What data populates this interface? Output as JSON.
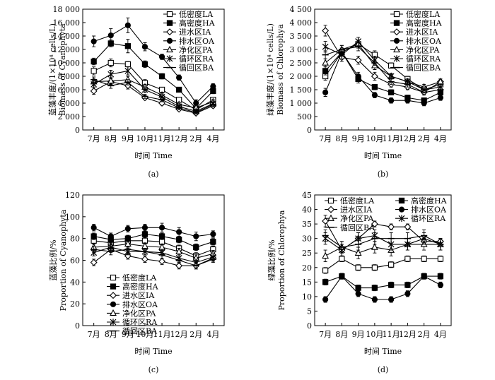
{
  "figure": {
    "x_categories": [
      "7月",
      "8月",
      "9月",
      "10月",
      "11月",
      "12月",
      "2月",
      "4月"
    ],
    "xlabel": "时间 Time",
    "panels": [
      {
        "id": "a",
        "label": "(a)",
        "ylabel_cn": "蓝藻丰度/(1×10⁴ cells/L)",
        "ylabel_en": "Biomass of Cyanophyta",
        "ylim": [
          0,
          18000
        ],
        "yticks": [
          "0",
          "2 000",
          "4 000",
          "6 000",
          "8 000",
          "10 000",
          "12 000",
          "14 000",
          "16 000",
          "18 000"
        ],
        "legend_position": "top-right",
        "legend_columns": 1
      },
      {
        "id": "b",
        "label": "(b)",
        "ylabel_cn": "绿藻丰度/(1×10⁴ cells/L)",
        "ylabel_en": "Biomass of Chlorophya",
        "ylim": [
          0,
          4500
        ],
        "yticks": [
          "0",
          "500",
          "1 000",
          "1 500",
          "2 000",
          "2 500",
          "3 000",
          "3 500",
          "4 000",
          "4 500"
        ],
        "legend_position": "top-right",
        "legend_columns": 1
      },
      {
        "id": "c",
        "label": "(c)",
        "ylabel_cn": "蓝藻比例/%",
        "ylabel_en": "Proportion of Cyanophyta",
        "ylim": [
          0,
          120
        ],
        "yticks": [
          "0",
          "20",
          "40",
          "60",
          "80",
          "100",
          "120"
        ],
        "legend_position": "bottom-left",
        "legend_columns": 1
      },
      {
        "id": "d",
        "label": "(d)",
        "ylabel_cn": "绿藻比例/%",
        "ylabel_en": "Proportion of Chlorophya",
        "ylim": [
          0,
          45
        ],
        "yticks": [
          "0",
          "5",
          "10",
          "15",
          "20",
          "25",
          "30",
          "35",
          "40",
          "45"
        ],
        "legend_position": "top",
        "legend_columns": 2
      }
    ]
  },
  "series_styles": [
    {
      "key": "LA",
      "name": "低密度LA",
      "marker": "open-square"
    },
    {
      "key": "HA",
      "name": "高密度HA",
      "marker": "filled-square"
    },
    {
      "key": "IA",
      "name": "进水区IA",
      "marker": "open-diamond"
    },
    {
      "key": "OA",
      "name": "排水区OA",
      "marker": "filled-circle"
    },
    {
      "key": "PA",
      "name": "净化区PA",
      "marker": "open-triangle"
    },
    {
      "key": "RA",
      "name": "循环区RA",
      "marker": "star"
    },
    {
      "key": "BA",
      "name": "循回区BA",
      "marker": "dash"
    }
  ],
  "chart_data": [
    {
      "type": "line",
      "title": "(a)",
      "xlabel": "时间 Time",
      "ylabel": "蓝藻丰度/(1×10⁴ cells/L) Biomass of Cyanophyta",
      "categories": [
        "7月",
        "8月",
        "9月",
        "10月",
        "11月",
        "12月",
        "2月",
        "4月"
      ],
      "ylim": [
        0,
        18000
      ],
      "series": [
        {
          "name": "低密度LA",
          "values": [
            8800,
            10000,
            9800,
            7000,
            6000,
            4500,
            3000,
            4500
          ],
          "errors": [
            600,
            600,
            400,
            500,
            300,
            300,
            300,
            300
          ]
        },
        {
          "name": "高密度HA",
          "values": [
            10200,
            12900,
            12500,
            9800,
            8000,
            6000,
            3200,
            5800
          ],
          "errors": [
            500,
            500,
            1000,
            500,
            400,
            300,
            300,
            400
          ]
        },
        {
          "name": "进水区IA",
          "values": [
            5800,
            7200,
            6600,
            4800,
            4000,
            3100,
            2500,
            3600
          ],
          "errors": [
            500,
            500,
            500,
            300,
            300,
            200,
            200,
            300
          ]
        },
        {
          "name": "排水区OA",
          "values": [
            13200,
            14100,
            15600,
            12400,
            10900,
            7800,
            4000,
            6500
          ],
          "errors": [
            800,
            1000,
            1100,
            600,
            400,
            400,
            500,
            400
          ]
        },
        {
          "name": "净化区PA",
          "values": [
            7200,
            7300,
            7500,
            6400,
            5200,
            3800,
            3300,
            4200
          ],
          "errors": [
            500,
            500,
            500,
            400,
            300,
            300,
            300,
            300
          ]
        },
        {
          "name": "循环区RA",
          "values": [
            6800,
            8300,
            8800,
            6000,
            4900,
            3500,
            2800,
            3900
          ],
          "errors": [
            500,
            600,
            600,
            400,
            300,
            300,
            300,
            300
          ]
        },
        {
          "name": "循回区BA",
          "values": [
            7500,
            6600,
            7100,
            5000,
            4500,
            3300,
            2600,
            3800
          ],
          "errors": [
            400,
            400,
            400,
            300,
            300,
            300,
            200,
            300
          ]
        }
      ],
      "legend": "top-right"
    },
    {
      "type": "line",
      "title": "(b)",
      "xlabel": "时间 Time",
      "ylabel": "绿藻丰度/(1×10⁴ cells/L) Biomass of Chlorophya",
      "categories": [
        "7月",
        "8月",
        "9月",
        "10月",
        "11月",
        "12月",
        "2月",
        "4月"
      ],
      "ylim": [
        0,
        4500
      ],
      "series": [
        {
          "name": "低密度LA",
          "values": [
            2000,
            2900,
            3200,
            2800,
            2400,
            1900,
            1500,
            1700
          ],
          "errors": [
            150,
            150,
            150,
            150,
            100,
            100,
            100,
            100
          ]
        },
        {
          "name": "高密度HA",
          "values": [
            2200,
            2900,
            1900,
            1600,
            1400,
            1200,
            1100,
            1400
          ],
          "errors": [
            150,
            150,
            150,
            100,
            100,
            100,
            100,
            100
          ]
        },
        {
          "name": "进水区IA",
          "values": [
            3700,
            2700,
            2600,
            2000,
            1700,
            1600,
            1400,
            1800
          ],
          "errors": [
            200,
            150,
            150,
            150,
            100,
            100,
            100,
            100
          ]
        },
        {
          "name": "排水区OA",
          "values": [
            1400,
            2900,
            2000,
            1300,
            1100,
            1100,
            1000,
            1200
          ],
          "errors": [
            150,
            150,
            150,
            100,
            100,
            100,
            100,
            100
          ]
        },
        {
          "name": "净化区PA",
          "values": [
            2500,
            3000,
            3200,
            2400,
            2000,
            1800,
            1600,
            1800
          ],
          "errors": [
            150,
            150,
            150,
            150,
            100,
            100,
            100,
            100
          ]
        },
        {
          "name": "循环区RA",
          "values": [
            3100,
            2800,
            3300,
            2600,
            2000,
            1800,
            1500,
            1600
          ],
          "errors": [
            200,
            150,
            150,
            150,
            100,
            100,
            100,
            100
          ]
        },
        {
          "name": "循回区BA",
          "values": [
            2800,
            3000,
            3100,
            2500,
            1800,
            1700,
            1400,
            1500
          ],
          "errors": [
            150,
            150,
            150,
            100,
            100,
            100,
            100,
            100
          ]
        }
      ],
      "legend": "top-right"
    },
    {
      "type": "line",
      "title": "(c)",
      "xlabel": "时间 Time",
      "ylabel": "蓝藻比例/% Proportion of Cyanophyta",
      "categories": [
        "7月",
        "8月",
        "9月",
        "10月",
        "11月",
        "12月",
        "2月",
        "4月"
      ],
      "ylim": [
        0,
        120
      ],
      "series": [
        {
          "name": "低密度LA",
          "values": [
            78,
            76,
            78,
            78,
            77,
            71,
            64,
            70
          ],
          "errors": [
            3,
            3,
            3,
            3,
            3,
            3,
            3,
            3
          ]
        },
        {
          "name": "高密度HA",
          "values": [
            82,
            79,
            80,
            84,
            82,
            79,
            72,
            77
          ],
          "errors": [
            3,
            3,
            3,
            3,
            3,
            3,
            3,
            3
          ]
        },
        {
          "name": "进水区IA",
          "values": [
            58,
            70,
            64,
            61,
            59,
            55,
            55,
            62
          ],
          "errors": [
            3,
            3,
            3,
            3,
            3,
            3,
            3,
            3
          ]
        },
        {
          "name": "排水区OA",
          "values": [
            90,
            82,
            89,
            90,
            90,
            86,
            82,
            84
          ],
          "errors": [
            3,
            3,
            3,
            3,
            4,
            4,
            4,
            3
          ]
        },
        {
          "name": "净化区PA",
          "values": [
            72,
            73,
            75,
            73,
            72,
            68,
            62,
            66
          ],
          "errors": [
            3,
            3,
            3,
            3,
            3,
            3,
            3,
            3
          ]
        },
        {
          "name": "循环区RA",
          "values": [
            67,
            72,
            68,
            68,
            67,
            62,
            58,
            63
          ],
          "errors": [
            3,
            3,
            3,
            3,
            3,
            3,
            3,
            3
          ]
        },
        {
          "name": "循回区BA",
          "values": [
            70,
            68,
            70,
            68,
            65,
            60,
            55,
            61
          ],
          "errors": [
            3,
            3,
            3,
            3,
            3,
            3,
            3,
            3
          ]
        }
      ],
      "legend": "bottom-left"
    },
    {
      "type": "line",
      "title": "(d)",
      "xlabel": "时间 Time",
      "ylabel": "绿藻比例/% Proportion of Chlorophya",
      "categories": [
        "7月",
        "8月",
        "9月",
        "10月",
        "11月",
        "12月",
        "2月",
        "4月"
      ],
      "ylim": [
        0,
        45
      ],
      "series": [
        {
          "name": "低密度LA",
          "values": [
            19,
            23,
            20,
            20,
            21,
            23,
            23,
            23
          ],
          "errors": [
            1,
            1,
            1,
            1,
            1,
            1,
            1,
            1
          ]
        },
        {
          "name": "高密度HA",
          "values": [
            15,
            17,
            13,
            13,
            14,
            14,
            17,
            17
          ],
          "errors": [
            1,
            1,
            1,
            1,
            1,
            1,
            1,
            1
          ]
        },
        {
          "name": "进水区IA",
          "values": [
            36,
            26,
            30,
            35,
            34,
            34,
            29,
            29
          ],
          "errors": [
            2,
            2,
            2,
            1,
            1,
            1,
            1,
            1
          ]
        },
        {
          "name": "排水区OA",
          "values": [
            9,
            17,
            11,
            9,
            9,
            11,
            17,
            14
          ],
          "errors": [
            1,
            1,
            1,
            1,
            1,
            1,
            1,
            1
          ]
        },
        {
          "name": "净化区PA",
          "values": [
            24,
            27,
            25,
            27,
            26,
            28,
            28,
            28
          ],
          "errors": [
            2,
            2,
            2,
            2,
            2,
            2,
            2,
            2
          ]
        },
        {
          "name": "循环区RA",
          "values": [
            30,
            26,
            30,
            31,
            28,
            28,
            30,
            28
          ],
          "errors": [
            2,
            2,
            2,
            2,
            2,
            2,
            2,
            2
          ]
        },
        {
          "name": "循回区BA",
          "values": [
            31,
            27,
            28,
            30,
            30,
            30,
            31,
            28
          ],
          "errors": [
            2,
            2,
            2,
            2,
            2,
            2,
            2,
            2
          ]
        }
      ],
      "legend": "top"
    }
  ]
}
